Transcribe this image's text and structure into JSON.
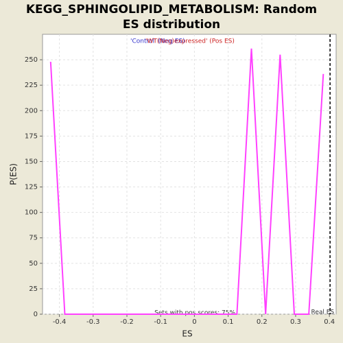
{
  "chart_data": {
    "type": "line",
    "title": "KEGG_SPHINGOLIPID_METABOLISM: Random ES distribution",
    "x_label": "ES",
    "y_label": "P(ES)",
    "x": [
      -0.426,
      -0.384,
      0.126,
      0.169,
      0.211,
      0.254,
      0.296,
      0.339,
      0.382
    ],
    "series": [
      {
        "name": "P(ES)",
        "color": "#ff40ff",
        "values": [
          248,
          0,
          0,
          261,
          0,
          255,
          0,
          0,
          236
        ]
      }
    ],
    "legend": [
      {
        "name": "'Control' (Neg ES)",
        "color": "#3333cc"
      },
      {
        "name": "'WT(Neg)expressed' (Pos ES)",
        "color": "#cc2222"
      }
    ],
    "xlim": [
      -0.45,
      0.42
    ],
    "ylim": [
      0,
      275
    ],
    "xticks": [
      -0.4,
      -0.3,
      -0.2,
      -0.1,
      0.0,
      0.1,
      0.2,
      0.3,
      0.4
    ],
    "yticks": [
      0,
      25,
      50,
      75,
      100,
      125,
      150,
      175,
      200,
      225,
      250
    ],
    "grid": true,
    "vline": {
      "x": 0.402,
      "label": "Real ES"
    },
    "annotation": "Sets with pos scores: 75%"
  }
}
